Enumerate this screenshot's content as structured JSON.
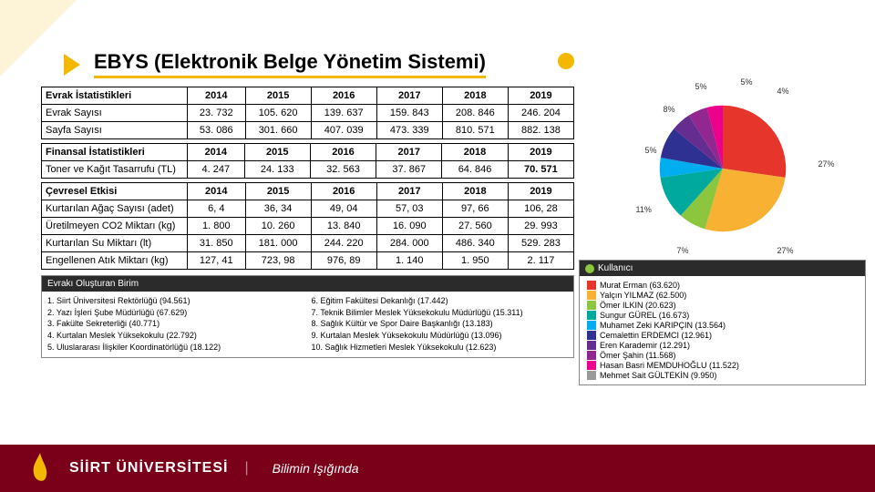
{
  "title": "EBYS (Elektronik Belge Yönetim Sistemi)",
  "tables": {
    "t1": {
      "h": [
        "Evrak İstatistikleri",
        "2014",
        "2015",
        "2016",
        "2017",
        "2018",
        "2019"
      ],
      "rows": [
        [
          "Evrak Sayısı",
          "23. 732",
          "105. 620",
          "139. 637",
          "159. 843",
          "208. 846",
          "246. 204"
        ],
        [
          "Sayfa Sayısı",
          "53. 086",
          "301. 660",
          "407. 039",
          "473. 339",
          "810. 571",
          "882. 138"
        ]
      ]
    },
    "t2": {
      "h": [
        "Finansal İstatistikleri",
        "2014",
        "2015",
        "2016",
        "2017",
        "2018",
        "2019"
      ],
      "rows": [
        [
          "Toner ve Kağıt Tasarrufu (TL)",
          "4. 247",
          "24. 133",
          "32. 563",
          "37. 867",
          "64. 846",
          "70. 571"
        ]
      ]
    },
    "t3": {
      "h": [
        "Çevresel Etkisi",
        "2014",
        "2015",
        "2016",
        "2017",
        "2018",
        "2019"
      ],
      "rows": [
        [
          "Kurtarılan Ağaç Sayısı (adet)",
          "6, 4",
          "36, 34",
          "49, 04",
          "57, 03",
          "97, 66",
          "106, 28"
        ],
        [
          "Üretilmeyen CO2 Miktarı (kg)",
          "1. 800",
          "10. 260",
          "13. 840",
          "16. 090",
          "27. 560",
          "29. 993"
        ],
        [
          "Kurtarılan Su Miktarı (lt)",
          "31. 850",
          "181. 000",
          "244. 220",
          "284. 000",
          "486. 340",
          "529. 283"
        ],
        [
          "Engellenen Atık Miktarı (kg)",
          "127, 41",
          "723, 98",
          "976, 89",
          "1. 140",
          "1. 950",
          "2. 117"
        ]
      ]
    }
  },
  "pie": {
    "slices": [
      {
        "v": 27,
        "c": "#e6352b",
        "lbl": "27%"
      },
      {
        "v": 27,
        "c": "#f8b133",
        "lbl": "27%"
      },
      {
        "v": 7,
        "c": "#8cc63f",
        "lbl": "7%"
      },
      {
        "v": 11,
        "c": "#00a99d",
        "lbl": "11%"
      },
      {
        "v": 5,
        "c": "#00aeef",
        "lbl": "5%"
      },
      {
        "v": 8,
        "c": "#2e3192",
        "lbl": "8%"
      },
      {
        "v": 5,
        "c": "#662d91",
        "lbl": "5%"
      },
      {
        "v": 5,
        "c": "#92278f",
        "lbl": "5%"
      },
      {
        "v": 4,
        "c": "#ec008c",
        "lbl": "4%"
      }
    ]
  },
  "dept": {
    "title": "Evrakı Oluşturan Birim",
    "left": [
      "1. Siirt Üniversitesi Rektörlüğü (94.561)",
      "2. Yazı İşleri Şube Müdürlüğü (67.629)",
      "3. Fakülte Sekreterliği (40.771)",
      "4. Kurtalan Meslek Yüksekokulu (22.792)",
      "5. Uluslararası İlişkiler Koordinatörlüğü (18.122)"
    ],
    "right": [
      "6. Eğitim Fakültesi Dekanlığı (17.442)",
      "7. Teknik Bilimler Meslek Yüksekokulu Müdürlüğü (15.311)",
      "8. Sağlık Kültür ve Spor Daire Başkanlığı (13.183)",
      "9. Kurtalan Meslek Yüksekokulu Müdürlüğü (13.096)",
      "10. Sağlık Hizmetleri Meslek Yüksekokulu (12.623)"
    ]
  },
  "users": {
    "title": "Kullanıcı",
    "list": [
      {
        "c": "#e6352b",
        "t": "Murat Erman (63.620)"
      },
      {
        "c": "#f8b133",
        "t": "Yalçın YILMAZ (62.500)"
      },
      {
        "c": "#8cc63f",
        "t": "Ömer ILKIN (20.623)"
      },
      {
        "c": "#00a99d",
        "t": "Sungur GÜREL (16.673)"
      },
      {
        "c": "#00aeef",
        "t": "Muhamet Zeki KARIPÇIN (13.564)"
      },
      {
        "c": "#2e3192",
        "t": "Cemalettin ERDEMCI (12.961)"
      },
      {
        "c": "#662d91",
        "t": "Eren Karademir (12.291)"
      },
      {
        "c": "#92278f",
        "t": "Ömer Şahin (11.568)"
      },
      {
        "c": "#ec008c",
        "t": "Hasan Basri MEMDUHOĞLU (11.522)"
      },
      {
        "c": "#999999",
        "t": "Mehmet Sait GÜLTEKİN (9.950)"
      }
    ]
  },
  "footer": {
    "univ": "SİİRT ÜNİVERSİTESİ",
    "motto": "Bilimin Işığında"
  }
}
